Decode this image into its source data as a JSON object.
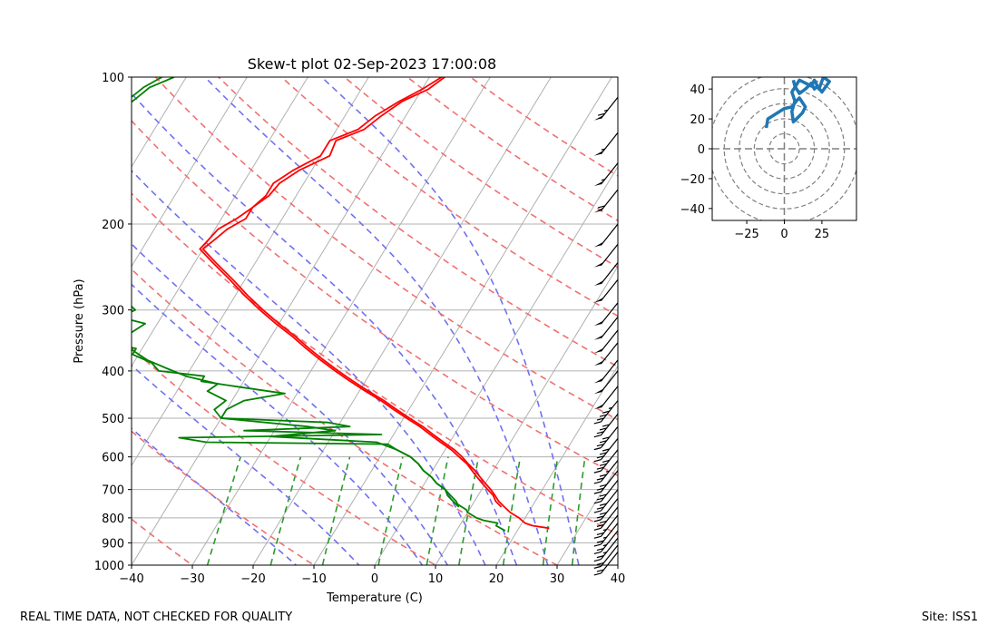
{
  "chart_data": [
    {
      "type": "skew-t",
      "title": "Skew-t plot 02-Sep-2023 17:00:08",
      "xlabel": "Temperature (C)",
      "ylabel": "Pressure (hPa)",
      "xlim": [
        -40,
        40
      ],
      "ylim": [
        1000,
        100
      ],
      "x_ticks": [
        -40,
        -30,
        -20,
        -10,
        0,
        10,
        20,
        30,
        40
      ],
      "y_ticks": [
        100,
        200,
        300,
        400,
        500,
        600,
        700,
        800,
        900,
        1000
      ],
      "skew_degrees_per_decade": 49,
      "series": [
        {
          "name": "temperature",
          "color": "#ff0000",
          "p": [
            840,
            830,
            820,
            800,
            780,
            760,
            740,
            720,
            700,
            680,
            660,
            640,
            620,
            600,
            580,
            560,
            540,
            520,
            500,
            480,
            460,
            440,
            420,
            400,
            380,
            360,
            340,
            320,
            300,
            280,
            260,
            240,
            225,
            215,
            205,
            195,
            185,
            175,
            165,
            155,
            145,
            135,
            128,
            120,
            112,
            106,
            100
          ],
          "values": [
            25,
            22,
            20.5,
            19,
            17,
            15.5,
            14,
            12.8,
            11.5,
            10,
            8.5,
            7,
            5.2,
            3.5,
            1.5,
            -1,
            -3.5,
            -6,
            -9,
            -12,
            -15,
            -18.5,
            -22,
            -25.5,
            -29,
            -32.5,
            -36,
            -40,
            -44,
            -48,
            -52,
            -56.5,
            -60,
            -59,
            -58,
            -56,
            -56,
            -54.5,
            -54,
            -52,
            -48.5,
            -49,
            -45.5,
            -44,
            -42,
            -39,
            -37.5
          ]
        },
        {
          "name": "temperature-trace-2",
          "color": "#ff0000",
          "p": [
            760,
            740,
            720,
            700,
            680,
            660,
            640,
            620,
            600,
            580,
            560,
            540,
            520,
            500,
            480,
            460,
            440,
            420,
            400,
            380,
            360,
            340,
            320,
            300,
            280,
            260,
            240,
            225,
            215,
            205,
            195,
            185,
            175,
            165,
            155,
            145,
            135,
            128,
            120,
            112,
            106,
            100
          ],
          "values": [
            15,
            13.5,
            12.5,
            11,
            9.5,
            8,
            6.5,
            5,
            3,
            1,
            -1.5,
            -4,
            -6.5,
            -9.5,
            -12.5,
            -15.5,
            -19,
            -22.5,
            -26,
            -29.5,
            -33,
            -36.5,
            -40.5,
            -44.5,
            -48.5,
            -52.5,
            -57,
            -60.5,
            -60,
            -59.5,
            -57.5,
            -56,
            -55,
            -55,
            -53,
            -50,
            -50,
            -46.5,
            -45,
            -42.5,
            -40,
            -38
          ]
        },
        {
          "name": "dewpoint",
          "color": "#008000",
          "p": [
            850,
            840,
            830,
            820,
            810,
            800,
            790,
            780,
            770,
            760,
            750,
            740,
            720,
            700,
            680,
            660,
            640,
            620,
            600,
            580,
            565,
            560,
            548,
            540,
            530,
            520,
            510,
            500,
            480,
            460,
            445,
            440,
            430,
            420,
            410,
            400,
            385,
            370,
            360,
            350,
            340,
            320,
            310,
            300,
            290,
            270,
            260,
            250,
            240,
            230,
            220,
            210,
            200,
            195,
            190,
            180,
            175,
            170,
            165,
            160,
            150,
            140,
            130,
            125,
            120,
            110,
            105,
            100
          ],
          "values": [
            18,
            17,
            16,
            16,
            13.5,
            12,
            11,
            10,
            9.5,
            8.5,
            7.5,
            7,
            5.5,
            4,
            2,
            0.5,
            -1.5,
            -3,
            -5,
            -8,
            -10,
            -40,
            -45,
            -12,
            -35,
            -18,
            -22,
            -40,
            -40,
            -38,
            -32,
            -35,
            -41,
            -47,
            -47,
            -55,
            -57,
            -61,
            -61,
            -66,
            -64,
            -62,
            -67,
            -65,
            -67,
            -70,
            -71,
            -73,
            -75,
            -76,
            -79,
            -80,
            -80,
            -85,
            -88,
            -90,
            -90,
            -92,
            -92,
            -90,
            -92,
            -90,
            -89,
            -90,
            -88,
            -86,
            -85,
            -82
          ]
        },
        {
          "name": "dewpoint-trace-2",
          "color": "#008000",
          "p": [
            760,
            740,
            720,
            700,
            680,
            660,
            640,
            620,
            600,
            580,
            560,
            545,
            530,
            520,
            500,
            480,
            460,
            440,
            425,
            410,
            395,
            380,
            360,
            340,
            320,
            300,
            280,
            260,
            240,
            220,
            205,
            195,
            185,
            175,
            165,
            155,
            145,
            135,
            125,
            115,
            105,
            100
          ],
          "values": [
            8,
            6.5,
            5,
            4,
            2,
            0.5,
            -1.5,
            -3,
            -5,
            -8,
            -12,
            -30,
            -20,
            -25,
            -40,
            -42,
            -41,
            -45,
            -44,
            -50,
            -54,
            -58,
            -62,
            -64,
            -65,
            -66,
            -68,
            -70,
            -72,
            -75,
            -78,
            -82,
            -84,
            -87,
            -89,
            -89,
            -90,
            -89,
            -89,
            -88,
            -86,
            -84
          ]
        }
      ],
      "reference_lines": {
        "isotherms_C": [
          -120,
          -110,
          -100,
          -90,
          -80,
          -70,
          -60,
          -50,
          -40,
          -30,
          -20,
          -10,
          0,
          10,
          20,
          30,
          40
        ],
        "dry_adiabats_theta_C": [
          -30,
          -10,
          10,
          30,
          50,
          70,
          90,
          110,
          130,
          150,
          170,
          190
        ],
        "moist_adiabats_start_C": [
          -10,
          0,
          10,
          14,
          20,
          25,
          30,
          35
        ],
        "mixing_ratio_g_per_kg": [
          0.4,
          1,
          2,
          4,
          7,
          10,
          16,
          24,
          32
        ],
        "mixing_ratio_top_hPa": 600,
        "colors": {
          "isotherm": "#b0b0b0",
          "dry_adiabat": "#f07070",
          "moist_adiabat": "#7070f0",
          "mixing_ratio": "#2a9a2a",
          "grid": "#b0b0b0"
        }
      },
      "wind_barbs": {
        "color": "#000000",
        "side": "right",
        "levels_hPa": [
          110,
          130,
          150,
          170,
          200,
          220,
          240,
          260,
          290,
          310,
          330,
          350,
          380,
          400,
          430,
          460,
          490,
          520,
          550,
          580,
          610,
          640,
          670,
          700,
          730,
          760,
          790,
          820,
          850,
          880,
          910,
          940
        ],
        "speed_kt": [
          65,
          55,
          55,
          60,
          50,
          50,
          50,
          50,
          50,
          50,
          50,
          50,
          50,
          50,
          50,
          45,
          40,
          40,
          40,
          40,
          35,
          30,
          30,
          30,
          30,
          30,
          25,
          25,
          25,
          25,
          20,
          20
        ]
      }
    },
    {
      "type": "hodograph",
      "xlim": [
        -48,
        48
      ],
      "ylim": [
        -48,
        48
      ],
      "x_ticks": [
        -25,
        0,
        25
      ],
      "y_ticks": [
        40,
        20,
        0,
        -20,
        -40
      ],
      "range_rings": [
        10,
        20,
        30,
        40,
        50
      ],
      "color": "#1f77b4",
      "u": [
        -12,
        -11,
        0,
        5,
        8,
        10,
        14,
        12,
        8,
        6,
        5,
        7,
        5,
        10,
        12,
        18,
        20,
        23,
        26,
        30,
        25,
        22,
        20,
        18,
        14,
        10,
        7,
        6
      ],
      "v": [
        14,
        20,
        27,
        28,
        32,
        34,
        28,
        24,
        20,
        18,
        25,
        32,
        38,
        46,
        45,
        42,
        46,
        40,
        48,
        45,
        38,
        42,
        40,
        44,
        40,
        37,
        42,
        46
      ]
    }
  ],
  "footer": {
    "disclaimer": "REAL TIME DATA, NOT CHECKED FOR QUALITY",
    "site": "Site: ISS1"
  }
}
